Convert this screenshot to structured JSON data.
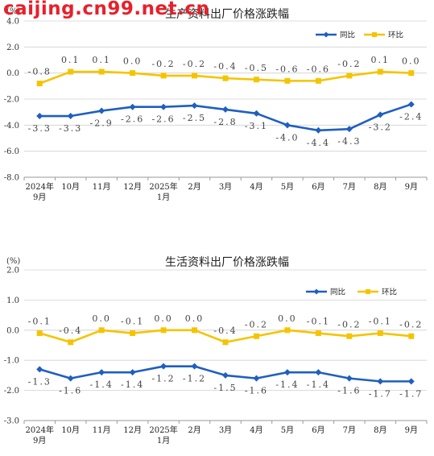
{
  "watermark": "caijing.cn99.net.cn",
  "colors": {
    "yoy": "#1f5fbf",
    "mom": "#f5c400",
    "grid": "#d0d0d0",
    "axis": "#9a9a9a",
    "label": "#444444"
  },
  "chart_data": [
    {
      "type": "line",
      "title": "生产资料出厂价格涨跌幅",
      "unit": "(%)",
      "categories": [
        "2024年|9月",
        "10月",
        "11月",
        "12月",
        "2025年|1月",
        "2月",
        "3月",
        "4月",
        "5月",
        "6月",
        "7月",
        "8月",
        "9月"
      ],
      "ylim": [
        -8.0,
        4.0
      ],
      "yticks": [
        "4.0",
        "2.0",
        "0.0",
        "-2.0",
        "-4.0",
        "-6.0",
        "-8.0"
      ],
      "ytick_values": [
        4,
        2,
        0,
        -2,
        -4,
        -6,
        -8
      ],
      "legend_position": "top-right",
      "series": [
        {
          "name": "同比",
          "color": "#1f5fbf",
          "marker": "diamond",
          "values": [
            -3.3,
            -3.3,
            -2.9,
            -2.6,
            -2.6,
            -2.5,
            -2.8,
            -3.1,
            -4.0,
            -4.4,
            -4.3,
            -3.2,
            -2.4
          ],
          "labels": [
            "-3.3",
            "-3.3",
            "-2.9",
            "-2.6",
            "-2.6",
            "-2.5",
            "-2.8",
            "-3.1",
            "-4.0",
            "-4.4",
            "-4.3",
            "-3.2",
            "-2.4"
          ]
        },
        {
          "name": "环比",
          "color": "#f5c400",
          "marker": "square",
          "values": [
            -0.8,
            0.1,
            0.1,
            0.0,
            -0.2,
            -0.2,
            -0.4,
            -0.5,
            -0.6,
            -0.6,
            -0.2,
            0.1,
            0.0
          ],
          "labels": [
            "-0.8",
            "0.1",
            "0.1",
            "0.0",
            "-0.2",
            "-0.2",
            "-0.4",
            "-0.5",
            "-0.6",
            "-0.6",
            "-0.2",
            "0.1",
            "0.0"
          ]
        }
      ]
    },
    {
      "type": "line",
      "title": "生活资料出厂价格涨跌幅",
      "unit": "(%)",
      "categories": [
        "2024年|9月",
        "10月",
        "11月",
        "12月",
        "2025年|1月",
        "2月",
        "3月",
        "4月",
        "5月",
        "6月",
        "7月",
        "8月",
        "9月"
      ],
      "ylim": [
        -3.0,
        2.0
      ],
      "yticks": [
        "2.0",
        "1.0",
        "0.0",
        "-1.0",
        "-2.0",
        "-3.0"
      ],
      "ytick_values": [
        2,
        1,
        0,
        -1,
        -2,
        -3
      ],
      "legend_position": "top-right",
      "series": [
        {
          "name": "同比",
          "color": "#1f5fbf",
          "marker": "diamond",
          "values": [
            -1.3,
            -1.6,
            -1.4,
            -1.4,
            -1.2,
            -1.2,
            -1.5,
            -1.6,
            -1.4,
            -1.4,
            -1.6,
            -1.7,
            -1.7
          ],
          "labels": [
            "-1.3",
            "-1.6",
            "-1.4",
            "-1.4",
            "-1.2",
            "-1.2",
            "-1.5",
            "-1.6",
            "-1.4",
            "-1.4",
            "-1.6",
            "-1.7",
            "-1.7"
          ]
        },
        {
          "name": "环比",
          "color": "#f5c400",
          "marker": "square",
          "values": [
            -0.1,
            -0.4,
            0.0,
            -0.1,
            0.0,
            0.0,
            -0.4,
            -0.2,
            0.0,
            -0.1,
            -0.2,
            -0.1,
            -0.2
          ],
          "labels": [
            "-0.1",
            "-0.4",
            "0.0",
            "-0.1",
            "0.0",
            "0.0",
            "-0.4",
            "-0.2",
            "0.0",
            "-0.1",
            "-0.2",
            "-0.1",
            "-0.2"
          ]
        }
      ]
    }
  ]
}
